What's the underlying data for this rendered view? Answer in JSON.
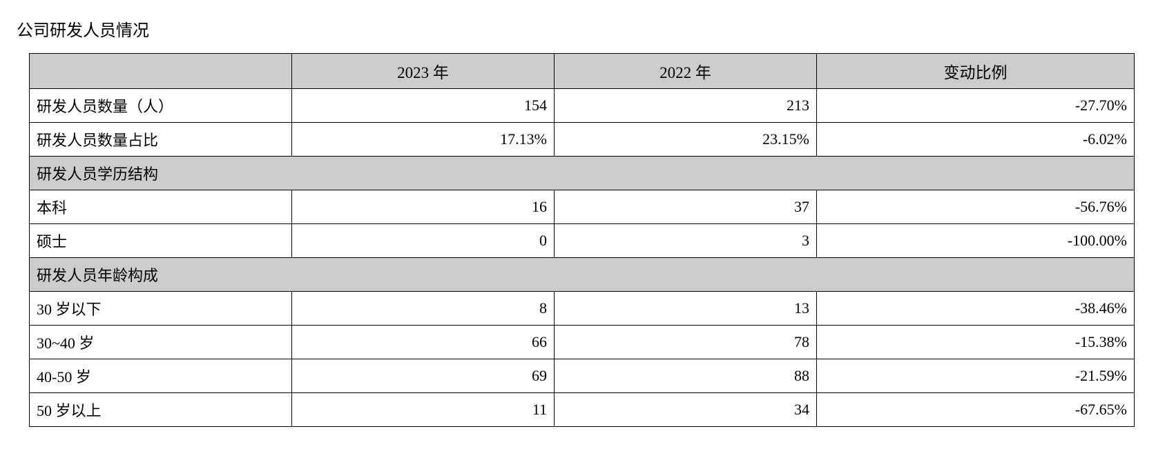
{
  "title": "公司研发人员情况",
  "headers": {
    "blank": "",
    "col1": "2023 年",
    "col2": "2022 年",
    "col3": "变动比例"
  },
  "rows": {
    "r1": {
      "label": "研发人员数量（人）",
      "v1": "154",
      "v2": "213",
      "v3": "-27.70%"
    },
    "r2": {
      "label": "研发人员数量占比",
      "v1": "17.13%",
      "v2": "23.15%",
      "v3": "-6.02%"
    },
    "s1": {
      "label": "研发人员学历结构"
    },
    "r3": {
      "label": "本科",
      "v1": "16",
      "v2": "37",
      "v3": "-56.76%"
    },
    "r4": {
      "label": "硕士",
      "v1": "0",
      "v2": "3",
      "v3": "-100.00%"
    },
    "s2": {
      "label": "研发人员年龄构成"
    },
    "r5": {
      "label": "30 岁以下",
      "v1": "8",
      "v2": "13",
      "v3": "-38.46%"
    },
    "r6": {
      "label": "30~40 岁",
      "v1": "66",
      "v2": "78",
      "v3": "-15.38%"
    },
    "r7": {
      "label": "40-50 岁",
      "v1": "69",
      "v2": "88",
      "v3": "-21.59%"
    },
    "r8": {
      "label": "50 岁以上",
      "v1": "11",
      "v2": "34",
      "v3": "-67.65%"
    }
  }
}
